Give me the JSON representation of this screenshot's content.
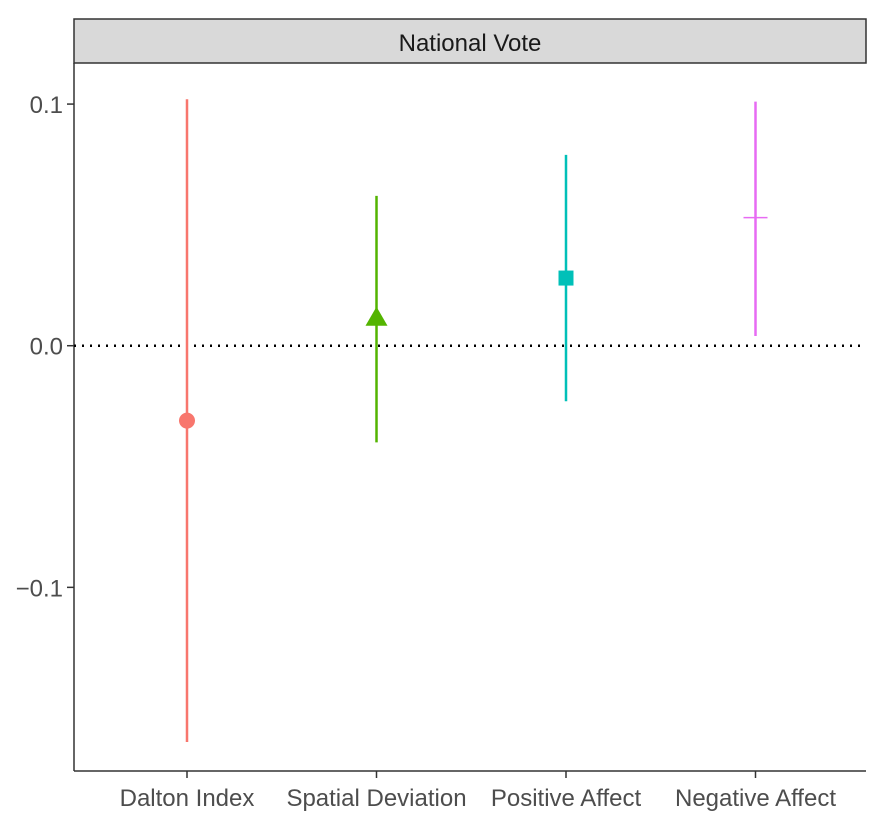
{
  "chart_data": {
    "type": "pointrange",
    "facet_title": "National Vote",
    "categories": [
      "Dalton Index",
      "Spatial Deviation",
      "Positive Affect",
      "Negative Affect"
    ],
    "series": [
      {
        "name": "Dalton Index",
        "estimate": -0.031,
        "lower": -0.164,
        "upper": 0.102,
        "shape": "circle",
        "color": "#F8766D"
      },
      {
        "name": "Spatial Deviation",
        "estimate": 0.012,
        "lower": -0.04,
        "upper": 0.062,
        "shape": "triangle",
        "color": "#53B400"
      },
      {
        "name": "Positive Affect",
        "estimate": 0.028,
        "lower": -0.023,
        "upper": 0.079,
        "shape": "square",
        "color": "#00C0B8"
      },
      {
        "name": "Negative Affect",
        "estimate": 0.053,
        "lower": 0.004,
        "upper": 0.101,
        "shape": "plus",
        "color": "#E76BF3"
      }
    ],
    "yticks": [
      -0.1,
      0.0,
      0.1
    ],
    "ytick_labels": [
      "−0.1",
      "0.0",
      "0.1"
    ],
    "ylim": [
      -0.176,
      0.117
    ],
    "reference_line": {
      "y": 0.0,
      "style": "dotted"
    },
    "xlabel": "",
    "ylabel": "",
    "legend": "none",
    "grid": false
  }
}
